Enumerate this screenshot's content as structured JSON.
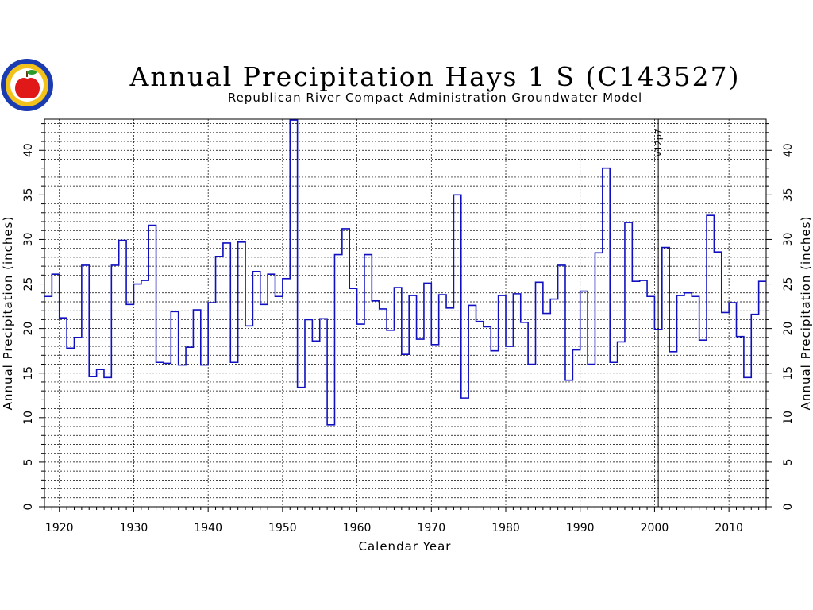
{
  "colors": {
    "line": "#1010c0",
    "grid": "#000000",
    "logo_outer": "#1a3cb0",
    "logo_ring": "#f2c21a",
    "logo_apple": "#e01818",
    "logo_leaf": "#2a9a2a"
  },
  "icons": {
    "logo": "apple-seal-icon"
  },
  "chart_data": {
    "type": "line",
    "step": true,
    "title": "Annual Precipitation Hays 1 S (C143527)",
    "subtitle": "Republican River Compact Administration Groundwater Model",
    "xlabel": "Calendar Year",
    "ylabel": "Annual Precipitation (inches)",
    "xlim": [
      1918,
      2015
    ],
    "ylim": [
      0,
      43.5
    ],
    "xticks": [
      1920,
      1930,
      1940,
      1950,
      1960,
      1970,
      1980,
      1990,
      2000,
      2010
    ],
    "yticks": [
      0,
      5,
      10,
      15,
      20,
      25,
      30,
      35,
      40
    ],
    "grid": true,
    "annotation": {
      "x": 2000.5,
      "label": "V12p7"
    },
    "x": [
      1918,
      1919,
      1920,
      1921,
      1922,
      1923,
      1924,
      1925,
      1926,
      1927,
      1928,
      1929,
      1930,
      1931,
      1932,
      1933,
      1934,
      1935,
      1936,
      1937,
      1938,
      1939,
      1940,
      1941,
      1942,
      1943,
      1944,
      1945,
      1946,
      1947,
      1948,
      1949,
      1950,
      1951,
      1952,
      1953,
      1954,
      1955,
      1956,
      1957,
      1958,
      1959,
      1960,
      1961,
      1962,
      1963,
      1964,
      1965,
      1966,
      1967,
      1968,
      1969,
      1970,
      1971,
      1972,
      1973,
      1974,
      1975,
      1976,
      1977,
      1978,
      1979,
      1980,
      1981,
      1982,
      1983,
      1984,
      1985,
      1986,
      1987,
      1988,
      1989,
      1990,
      1991,
      1992,
      1993,
      1994,
      1995,
      1996,
      1997,
      1998,
      1999,
      2000,
      2001,
      2002,
      2003,
      2004,
      2005,
      2006,
      2007,
      2008,
      2009,
      2010,
      2011,
      2012,
      2013,
      2014
    ],
    "values": [
      23.6,
      26.1,
      21.2,
      17.8,
      19.0,
      27.1,
      14.6,
      15.4,
      14.5,
      27.1,
      29.9,
      22.7,
      25.0,
      25.4,
      31.6,
      16.2,
      16.1,
      21.9,
      15.9,
      17.9,
      22.1,
      15.9,
      22.9,
      28.1,
      29.6,
      16.2,
      29.7,
      20.3,
      26.4,
      22.7,
      26.1,
      23.6,
      25.6,
      43.4,
      13.4,
      21.0,
      18.6,
      21.1,
      9.2,
      28.3,
      31.2,
      24.5,
      20.5,
      28.3,
      23.1,
      22.2,
      19.8,
      24.6,
      17.1,
      23.7,
      18.8,
      25.1,
      18.2,
      23.8,
      22.3,
      35.0,
      12.2,
      22.6,
      20.8,
      20.2,
      17.5,
      23.7,
      18.0,
      23.9,
      20.7,
      16.0,
      25.2,
      21.7,
      23.3,
      27.1,
      14.2,
      17.6,
      24.2,
      16.0,
      28.5,
      38.0,
      16.2,
      18.5,
      31.9,
      25.3,
      25.4,
      23.6,
      19.9,
      29.1,
      17.4,
      23.7,
      24.0,
      23.6,
      18.7,
      32.7,
      28.6,
      21.8,
      22.9,
      19.1,
      14.5,
      21.6,
      25.3
    ]
  }
}
